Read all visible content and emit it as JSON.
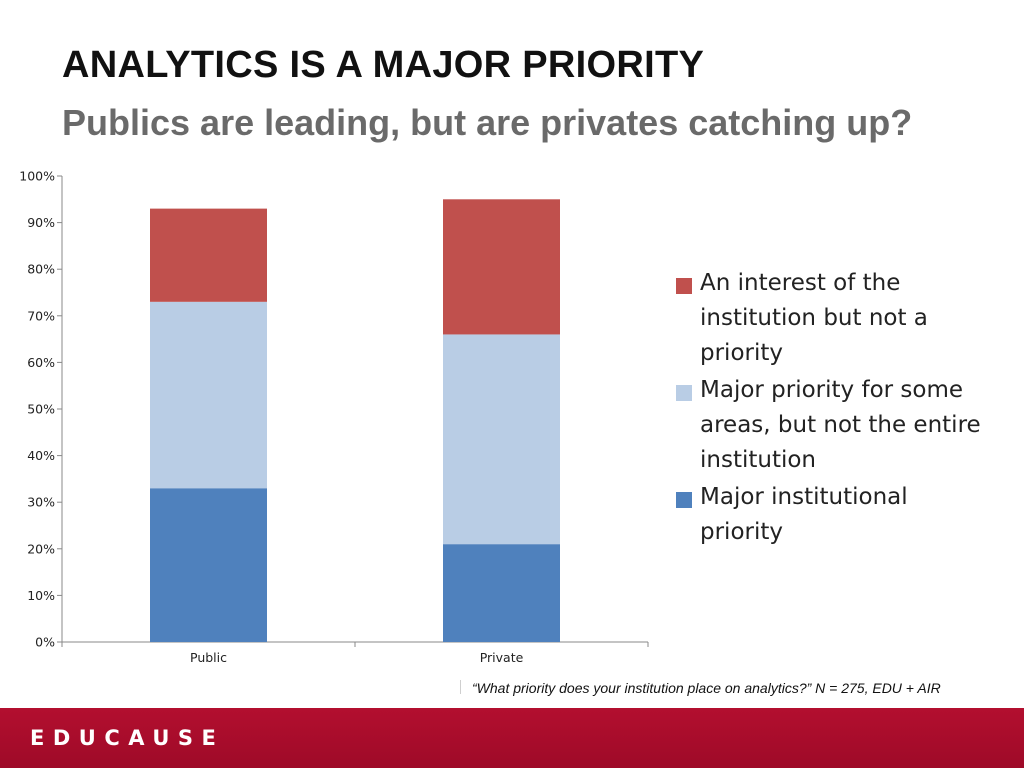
{
  "slide": {
    "title": "ANALYTICS IS A MAJOR PRIORITY",
    "subtitle": "Publics are leading, but are privates catching up?",
    "footnote": "“What priority does your institution place on analytics?” N = 275, EDU + AIR",
    "logo_text": "EDUCAUSE"
  },
  "colors": {
    "footer": "#a80c2c",
    "series_major_institutional": "#4f81bd",
    "series_major_some_areas": "#b9cde5",
    "series_interest": "#c0504d"
  },
  "chart_data": {
    "type": "bar",
    "stacked": true,
    "categories": [
      "Public",
      "Private"
    ],
    "series": [
      {
        "name": "Major institutional priority",
        "values": [
          33,
          21
        ],
        "color": "#4f81bd"
      },
      {
        "name": "Major priority for some areas, but not the entire institution",
        "values": [
          40,
          45
        ],
        "color": "#b9cde5"
      },
      {
        "name": "An interest of the institution but not a priority",
        "values": [
          20,
          29
        ],
        "color": "#c0504d"
      }
    ],
    "legend_order": [
      2,
      1,
      0
    ],
    "ylim": [
      0,
      100
    ],
    "yticks": [
      0,
      10,
      20,
      30,
      40,
      50,
      60,
      70,
      80,
      90,
      100
    ],
    "ytick_labels": [
      "0%",
      "10%",
      "20%",
      "30%",
      "40%",
      "50%",
      "60%",
      "70%",
      "80%",
      "90%",
      "100%"
    ],
    "legend_position": "right",
    "grid": false
  }
}
